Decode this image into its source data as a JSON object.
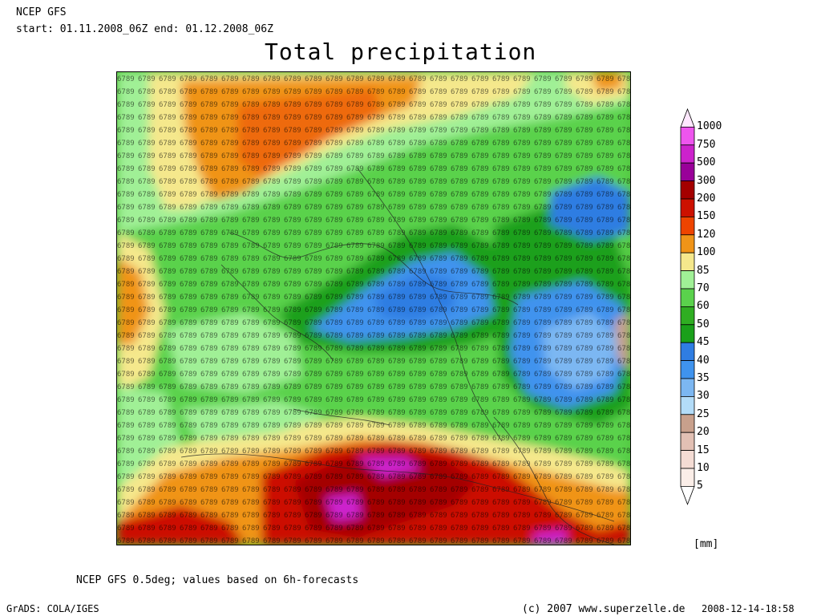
{
  "header": {
    "line1": "NCEP GFS",
    "line2": "start: 01.11.2008_06Z end: 01.12.2008_06Z"
  },
  "title": "Total precipitation",
  "colorbar": {
    "units": "[mm]",
    "levels": [
      "1000",
      "750",
      "500",
      "300",
      "200",
      "150",
      "120",
      "100",
      "85",
      "70",
      "60",
      "50",
      "45",
      "40",
      "35",
      "30",
      "25",
      "20",
      "15",
      "10",
      "5"
    ],
    "colors": [
      "#ffe8ff",
      "#ee55ee",
      "#cc22cc",
      "#990099",
      "#a40000",
      "#cc1100",
      "#ee4400",
      "#f09418",
      "#f5e88c",
      "#a0f096",
      "#5ad24c",
      "#2fae22",
      "#1aa01a",
      "#2f7de2",
      "#3f93ee",
      "#7cb7f2",
      "#b3dcf8",
      "#c8a08c",
      "#e2c0b4",
      "#f4dcd4",
      "#fbeee8",
      "#ffffff"
    ]
  },
  "footer": {
    "source": "NCEP GFS 0.5deg; values based on 6h-forecasts",
    "grads": "GrADS: COLA/IGES",
    "copyright": "(c) 2007 www.superzelle.de",
    "timestamp": "2008-12-14-18:58"
  }
}
